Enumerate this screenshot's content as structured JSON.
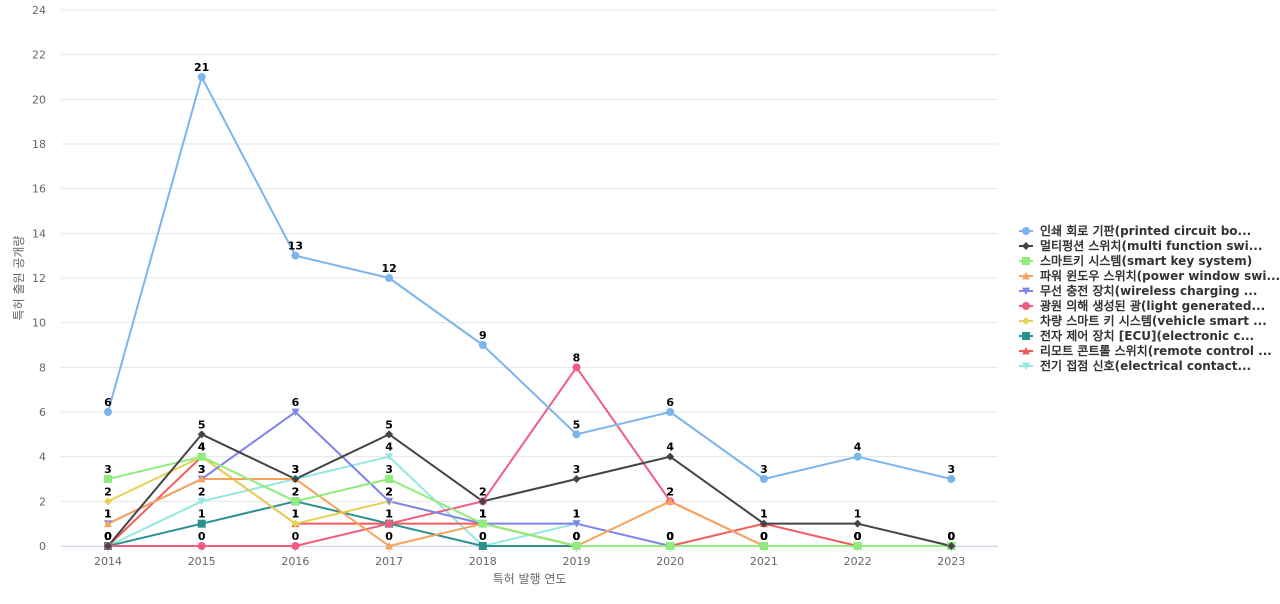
{
  "chart_data": {
    "type": "line",
    "xlabel": "특허 발행 연도",
    "ylabel": "특허 출원 공개량",
    "x": [
      "2014",
      "2015",
      "2016",
      "2017",
      "2018",
      "2019",
      "2020",
      "2021",
      "2022",
      "2023"
    ],
    "ylim": [
      0,
      24
    ],
    "yticks": [
      0,
      2,
      4,
      6,
      8,
      10,
      12,
      14,
      16,
      18,
      20,
      22,
      24
    ],
    "grid": true,
    "legend_position": "right",
    "labeled_series": [
      "인쇄 회로 기판(printed circuit bo...",
      "멀티펑션 스위치(multi function swi..."
    ],
    "series": [
      {
        "name": "인쇄 회로 기판(printed circuit bo...",
        "color": "#7cb5ec",
        "marker": "circle",
        "values": [
          6,
          21,
          13,
          12,
          9,
          5,
          6,
          3,
          4,
          3
        ]
      },
      {
        "name": "멀티펑션 스위치(multi function swi...",
        "color": "#434348",
        "marker": "diamond",
        "values": [
          0,
          5,
          3,
          5,
          2,
          3,
          4,
          1,
          1,
          0
        ]
      },
      {
        "name": "스마트키 시스템(smart key system)",
        "color": "#90ed7d",
        "marker": "square",
        "values": [
          3,
          4,
          2,
          3,
          1,
          0,
          0,
          0,
          0,
          0
        ]
      },
      {
        "name": "파워 윈도우 스위치(power window swi...",
        "color": "#f7a35c",
        "marker": "triangle",
        "values": [
          1,
          3,
          3,
          0,
          1,
          0,
          2,
          0,
          0,
          0
        ]
      },
      {
        "name": "무선 충전 장치(wireless charging ...",
        "color": "#8085e9",
        "marker": "triangle-down",
        "values": [
          1,
          3,
          6,
          2,
          1,
          1,
          0,
          0,
          0,
          0
        ]
      },
      {
        "name": "광원 의해 생성된 광(light generated...",
        "color": "#f15c80",
        "marker": "circle",
        "values": [
          0,
          0,
          0,
          1,
          2,
          8,
          2,
          0,
          0,
          0
        ]
      },
      {
        "name": "차량 스마트 키 시스템(vehicle smart ...",
        "color": "#e4d354",
        "marker": "diamond",
        "values": [
          2,
          4,
          1,
          2,
          1,
          0,
          0,
          0,
          0,
          0
        ]
      },
      {
        "name": "전자 제어 장치 [ECU](electronic c...",
        "color": "#2b908f",
        "marker": "square",
        "values": [
          0,
          1,
          2,
          1,
          0,
          0,
          0,
          0,
          0,
          0
        ]
      },
      {
        "name": "리모트 콘트롤 스위치(remote control ...",
        "color": "#f45b5b",
        "marker": "triangle",
        "values": [
          0,
          4,
          1,
          1,
          1,
          0,
          0,
          1,
          0,
          0
        ]
      },
      {
        "name": "전기 접점 신호(electrical contact...",
        "color": "#91e8e1",
        "marker": "triangle-down",
        "values": [
          0,
          2,
          3,
          4,
          0,
          1,
          0,
          0,
          0,
          0
        ]
      }
    ]
  }
}
